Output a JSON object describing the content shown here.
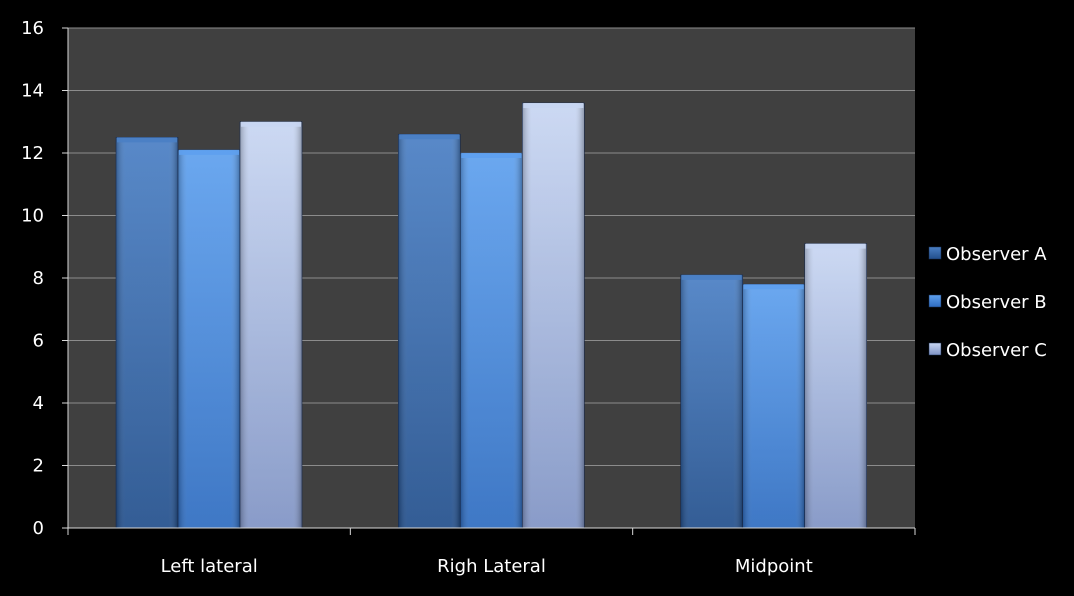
{
  "colors": {
    "background": "#000000",
    "plot_area": "#404040",
    "grid": "#8c8c8c",
    "axis": "#d9d9d9",
    "text": "#ffffff"
  },
  "chart_data": {
    "type": "bar",
    "title": "",
    "xlabel": "",
    "ylabel": "",
    "categories": [
      "Left lateral",
      "Righ Lateral",
      "Midpoint"
    ],
    "series": [
      {
        "name": "Observer A",
        "values": [
          12.5,
          12.6,
          8.1
        ],
        "color_light": "#4a7fc4",
        "color_dark": "#224f8c"
      },
      {
        "name": "Observer B",
        "values": [
          12.1,
          12.0,
          7.8
        ],
        "color_light": "#5ea0ee",
        "color_dark": "#2e6cc0"
      },
      {
        "name": "Observer C",
        "values": [
          13.0,
          13.6,
          9.1
        ],
        "color_light": "#c8d6f2",
        "color_dark": "#7f93c4"
      }
    ],
    "ylim": [
      0,
      16
    ],
    "yticks": [
      0,
      2,
      4,
      6,
      8,
      10,
      12,
      14,
      16
    ],
    "grid": true,
    "legend": "right"
  }
}
